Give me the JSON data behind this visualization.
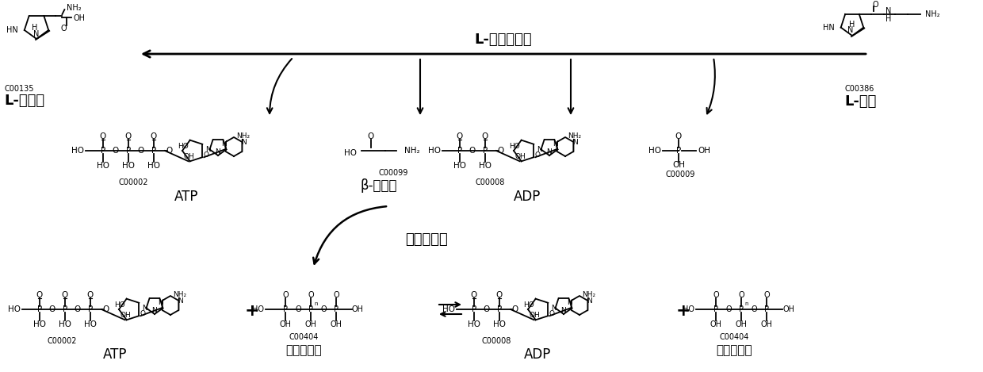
{
  "bg_color": "#ffffff",
  "top_arrow_label": "L-肌肽合成酶",
  "middle_label": "聚磷酸激酶",
  "left_compound_id": "C00135",
  "left_compound_name": "L-组氨酸",
  "right_compound_id": "C00386",
  "right_compound_name": "L-肌肽",
  "atp_label": "ATP",
  "adp_label": "ADP",
  "beta_ala_label": "β-丙氨酸",
  "polyphosphate_label": "多聚磷酸盐",
  "atp_id": "C00002",
  "adp_id": "C00008",
  "beta_ala_id": "C00099",
  "phosphate_id": "C00009",
  "polyphosphate_id": "C00404"
}
